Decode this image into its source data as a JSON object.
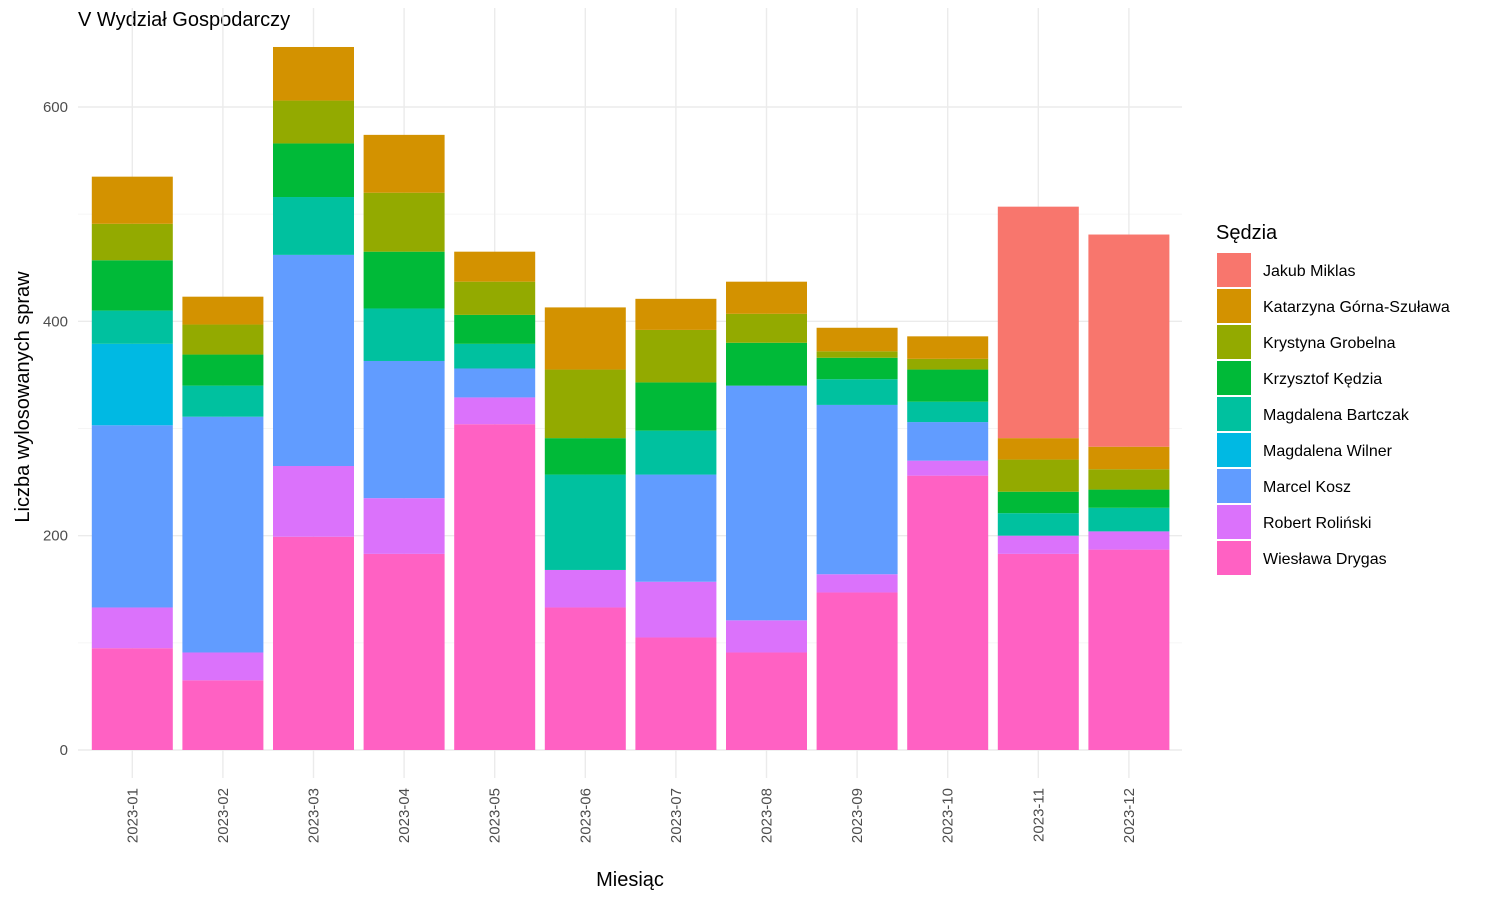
{
  "chart_data": {
    "type": "bar",
    "stacked": true,
    "title": "V Wydział Gospodarczy",
    "xlabel": "Miesiąc",
    "ylabel": "Liczba wylosowanych spraw",
    "ylim": [
      0,
      660
    ],
    "yticks": [
      0,
      200,
      400,
      600
    ],
    "grid": true,
    "legend": {
      "title": "Sędzia",
      "position": "right"
    },
    "categories": [
      "2023-01",
      "2023-02",
      "2023-03",
      "2023-04",
      "2023-05",
      "2023-06",
      "2023-07",
      "2023-08",
      "2023-09",
      "2023-10",
      "2023-11",
      "2023-12"
    ],
    "series": [
      {
        "name": "Jakub Miklas",
        "color": "#F8766D",
        "values": [
          0,
          0,
          0,
          0,
          0,
          0,
          0,
          0,
          0,
          0,
          216,
          198
        ]
      },
      {
        "name": "Katarzyna Górna-Szuława",
        "color": "#D39200",
        "values": [
          44,
          26,
          50,
          54,
          28,
          58,
          29,
          30,
          22,
          21,
          20,
          21
        ]
      },
      {
        "name": "Krystyna Grobelna",
        "color": "#93AA00",
        "values": [
          34,
          28,
          40,
          55,
          31,
          64,
          49,
          27,
          6,
          10,
          30,
          19
        ]
      },
      {
        "name": "Krzysztof Kędzia",
        "color": "#00BA38",
        "values": [
          47,
          29,
          50,
          53,
          27,
          34,
          45,
          40,
          20,
          30,
          20,
          17
        ]
      },
      {
        "name": "Magdalena Bartczak",
        "color": "#00C19F",
        "values": [
          31,
          29,
          54,
          49,
          23,
          89,
          41,
          0,
          24,
          19,
          21,
          22
        ]
      },
      {
        "name": "Magdalena Wilner",
        "color": "#00B9E3",
        "values": [
          76,
          0,
          0,
          0,
          0,
          0,
          0,
          0,
          0,
          0,
          0,
          0
        ]
      },
      {
        "name": "Marcel Kosz",
        "color": "#619CFF",
        "values": [
          170,
          220,
          197,
          128,
          27,
          0,
          100,
          219,
          158,
          36,
          0,
          0
        ]
      },
      {
        "name": "Robert Roliński",
        "color": "#DB72FB",
        "values": [
          38,
          26,
          66,
          52,
          25,
          35,
          52,
          30,
          17,
          14,
          17,
          17
        ]
      },
      {
        "name": "Wiesława Drygas",
        "color": "#FF61C3",
        "values": [
          95,
          65,
          199,
          183,
          304,
          133,
          105,
          91,
          147,
          256,
          183,
          187
        ]
      }
    ]
  }
}
